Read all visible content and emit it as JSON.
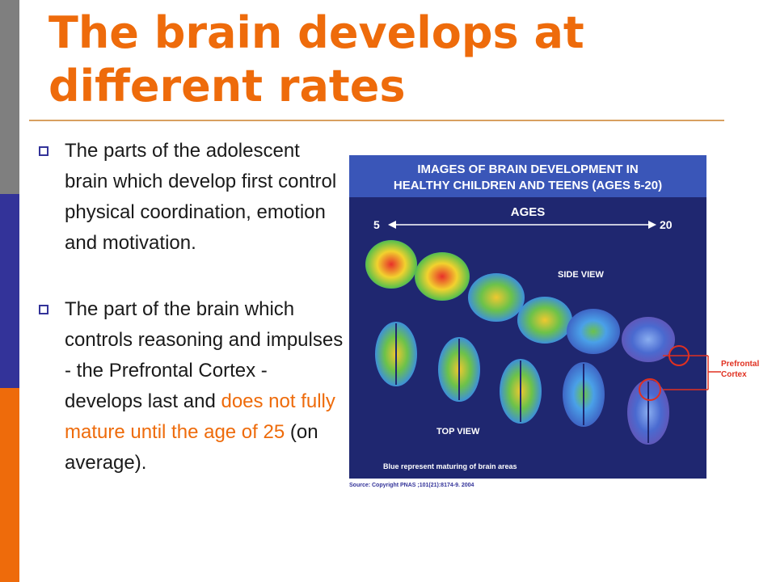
{
  "slide": {
    "title": "The brain develops at different rates",
    "bullets": [
      {
        "text": "The parts of the adolescent brain which develop first control physical coordination, emotion and motivation."
      },
      {
        "text_before": "The part of the brain which controls reasoning and impulses - the Prefrontal Cortex - develops last and ",
        "highlight": "does not fully mature until the age of 25",
        "text_after": " (on average)."
      }
    ]
  },
  "figure": {
    "heading_line1": "IMAGES OF BRAIN DEVELOPMENT IN",
    "heading_line2": "HEALTHY CHILDREN AND TEENS (AGES 5-20)",
    "ages_label": "AGES",
    "age_start": "5",
    "age_end": "20",
    "side_view_label": "SIDE VIEW",
    "top_view_label": "TOP VIEW",
    "note": "Blue represent maturing of brain areas",
    "source": "Source: Copyright PNAS ;101(21):8174-9. 2004",
    "callout_line1": "Prefrontal",
    "callout_line2": "Cortex",
    "colors": {
      "accent": "#ee6b0b",
      "navy": "#333399",
      "callout": "#e03020"
    }
  }
}
